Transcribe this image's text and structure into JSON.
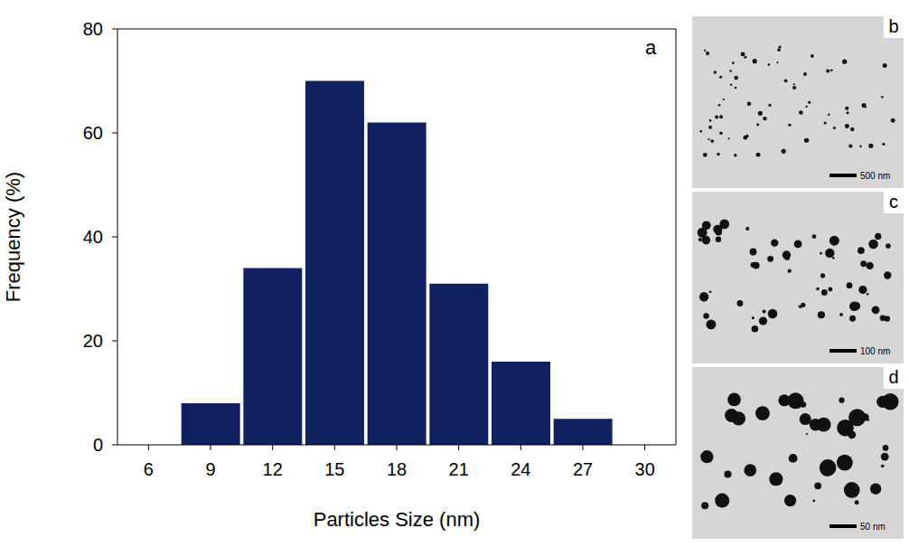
{
  "chart_data": {
    "type": "histogram",
    "bins": [
      7.5,
      10.5,
      13.5,
      16.5,
      19.5,
      22.5,
      25.5,
      28.5
    ],
    "values": [
      8,
      34,
      70,
      62,
      31,
      16,
      5
    ],
    "color": "#0f2160",
    "xlim": [
      4.5,
      31.5
    ],
    "xticks": [
      6,
      9,
      12,
      15,
      18,
      21,
      24,
      27,
      30
    ],
    "ylim": [
      0,
      80
    ],
    "yticks": [
      0,
      20,
      40,
      60,
      80
    ],
    "x_label": "Particles Size (nm)",
    "y_label": "Frequency (%)",
    "annotations": [
      "a"
    ],
    "grid": false
  },
  "images": [
    {
      "label": "b",
      "scale_bar": "500 nm"
    },
    {
      "label": "c",
      "scale_bar": "100 nm"
    },
    {
      "label": "d",
      "scale_bar": "50 nm"
    }
  ]
}
